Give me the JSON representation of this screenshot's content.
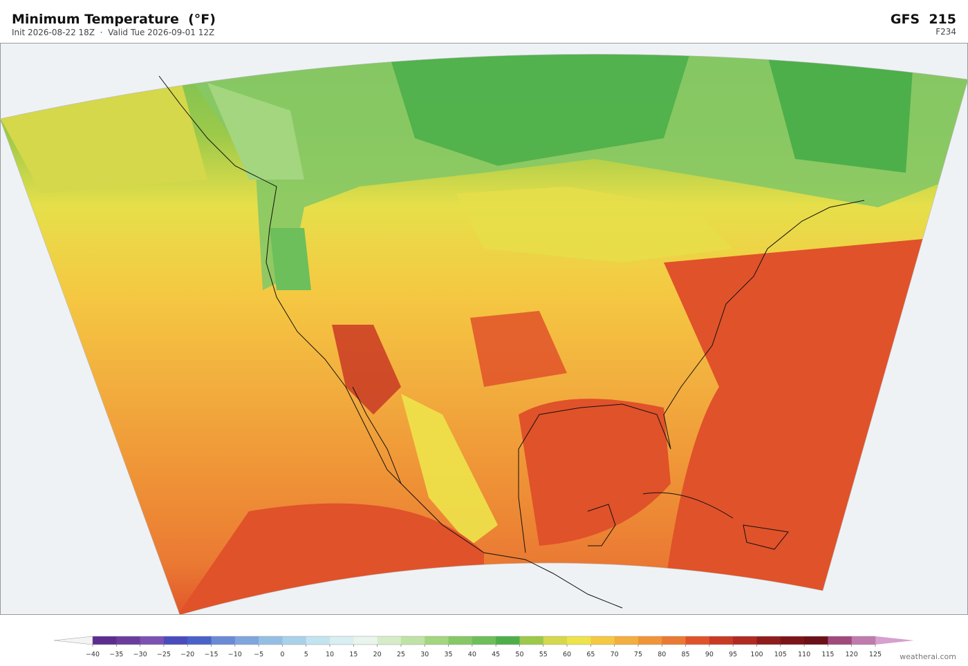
{
  "header": {
    "title": "Minimum Temperature  (°F)",
    "subtitle": "Init 2026-08-22 18Z  ·  Valid Tue 2026-09-01 12Z",
    "model": "GFS  215",
    "forecast_hour": "F234"
  },
  "colorbar": {
    "ticks": [
      "−40",
      "−35",
      "−30",
      "−25",
      "−20",
      "−15",
      "−10",
      "−5",
      "0",
      "5",
      "10",
      "15",
      "20",
      "25",
      "30",
      "35",
      "40",
      "45",
      "50",
      "55",
      "60",
      "65",
      "70",
      "75",
      "80",
      "85",
      "90",
      "95",
      "100",
      "105",
      "110",
      "115",
      "120",
      "125"
    ],
    "under_color": "#f4f4f4",
    "colors": [
      "#5b2d8e",
      "#6a3d9a",
      "#7a52b4",
      "#4a4cbd",
      "#4a62c8",
      "#6a8ad6",
      "#7fa6dc",
      "#94bfe3",
      "#a9d1ea",
      "#c2e3f0",
      "#d8eef2",
      "#e8f4ec",
      "#d6ecc8",
      "#bfe3a4",
      "#a3d67e",
      "#86c865",
      "#6cbf5a",
      "#4daf4a",
      "#9cc94a",
      "#d5d84a",
      "#ede34a",
      "#f5c842",
      "#f2ae3e",
      "#ef9437",
      "#ea7a33",
      "#e0522a",
      "#c93a24",
      "#b02a22",
      "#8e1c1c",
      "#7a1418",
      "#6b1018",
      "#a04a7c",
      "#c07aae"
    ],
    "over_color": "#d6a0cf"
  },
  "watermark": "weatherai.com"
}
